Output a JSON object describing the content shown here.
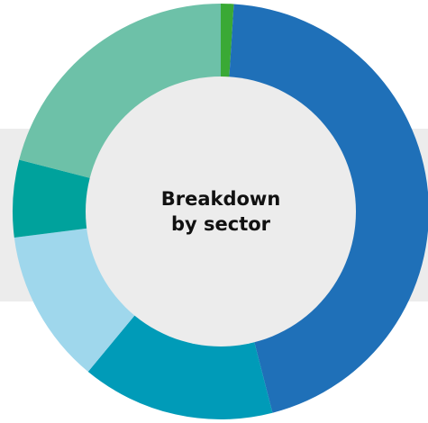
{
  "chart_data": {
    "type": "donut",
    "center_label": [
      "Breakdown",
      "by sector"
    ],
    "values": [
      1,
      45,
      15,
      12,
      6,
      21
    ],
    "colors": [
      "#3aa935",
      "#1f70b8",
      "#009bb8",
      "#9fd7ec",
      "#00a29c",
      "#6dc1a8"
    ]
  }
}
